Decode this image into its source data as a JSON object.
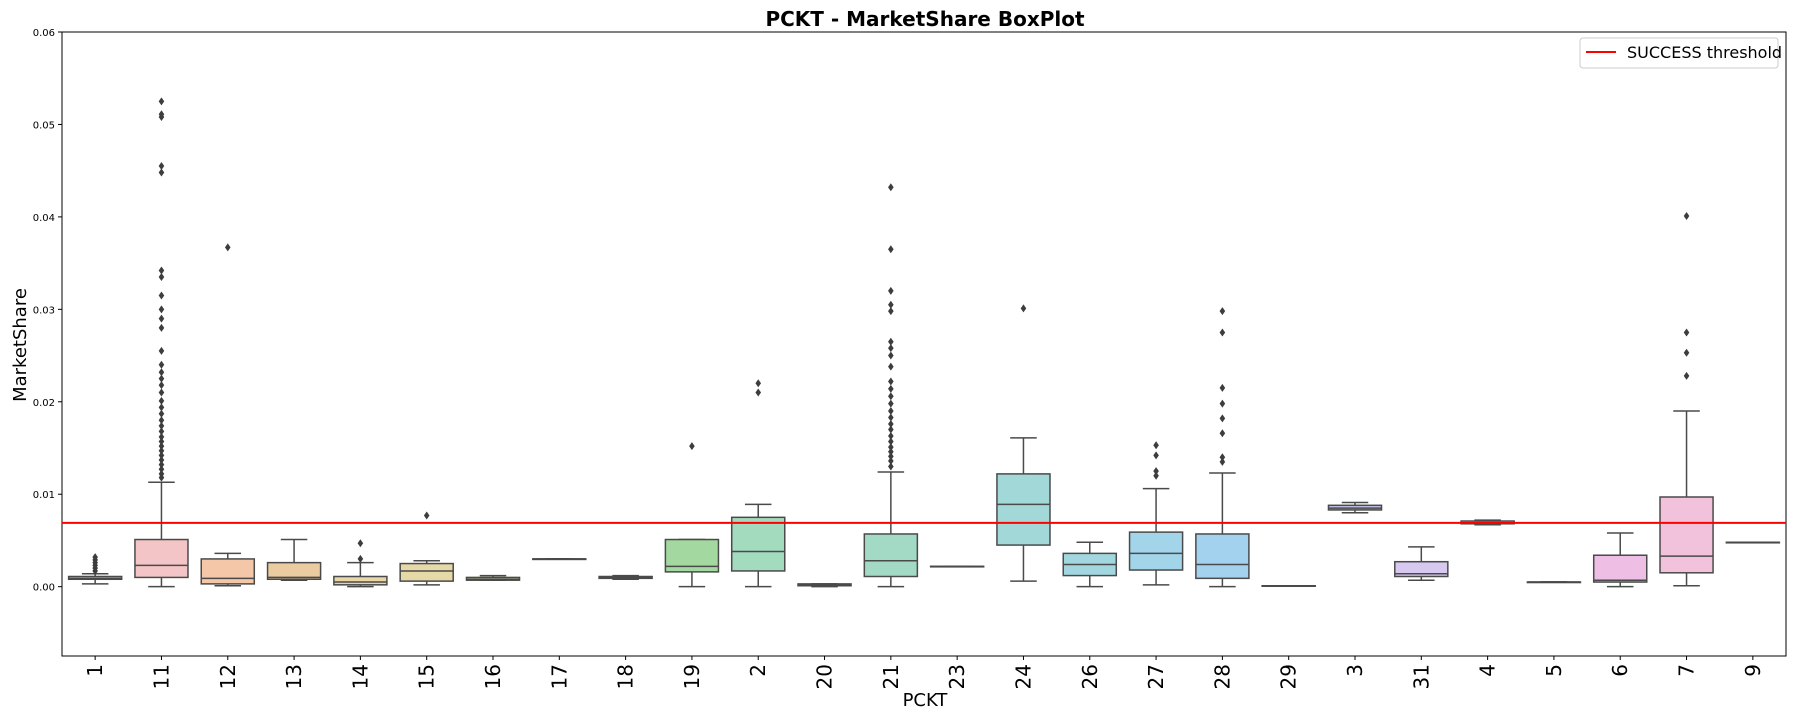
{
  "chart_data": {
    "type": "box",
    "title": "PCKT - MarketShare BoxPlot",
    "xlabel": "PCKT",
    "ylabel": "MarketShare",
    "ylim": [
      -0.0075,
      0.06
    ],
    "yticks": [
      "0.00",
      "0.01",
      "0.02",
      "0.03",
      "0.04",
      "0.05",
      "0.06"
    ],
    "threshold": {
      "name": "SUCCESS threshold",
      "value": 0.0069,
      "color": "#ff0000"
    },
    "legend_position": "top-right",
    "grid": false,
    "categories": [
      {
        "label": "1",
        "q1": 0.0008,
        "median": 0.0009,
        "q3": 0.0011,
        "wlo": 0.0003,
        "whi": 0.0014,
        "color": "#d9d9d9",
        "outliers": [
          0.0017,
          0.002,
          0.0023,
          0.0026,
          0.0029,
          0.0032
        ]
      },
      {
        "label": "11",
        "q1": 0.001,
        "median": 0.0023,
        "q3": 0.0051,
        "wlo": 0.0,
        "whi": 0.0113,
        "color": "#f4c5c6",
        "outliers": [
          0.0118,
          0.0122,
          0.0127,
          0.0132,
          0.0137,
          0.0142,
          0.0147,
          0.0152,
          0.0157,
          0.0162,
          0.0168,
          0.0174,
          0.018,
          0.0187,
          0.0194,
          0.0201,
          0.021,
          0.0218,
          0.0225,
          0.0232,
          0.024,
          0.0255,
          0.028,
          0.029,
          0.03,
          0.0315,
          0.0335,
          0.0342,
          0.0448,
          0.0455,
          0.0508,
          0.0511,
          0.0525
        ]
      },
      {
        "label": "12",
        "q1": 0.0003,
        "median": 0.0009,
        "q3": 0.003,
        "wlo": 0.0001,
        "whi": 0.0036,
        "color": "#f4c7a8",
        "outliers": [
          0.0367
        ]
      },
      {
        "label": "13",
        "q1": 0.0008,
        "median": 0.001,
        "q3": 0.0026,
        "wlo": 0.0007,
        "whi": 0.0051,
        "color": "#ebcca0",
        "outliers": []
      },
      {
        "label": "14",
        "q1": 0.0002,
        "median": 0.0005,
        "q3": 0.0011,
        "wlo": 0.0,
        "whi": 0.0026,
        "color": "#e8d5a8",
        "outliers": [
          0.003,
          0.0047
        ]
      },
      {
        "label": "15",
        "q1": 0.0006,
        "median": 0.0017,
        "q3": 0.0025,
        "wlo": 0.0002,
        "whi": 0.0028,
        "color": "#e6d9a8",
        "outliers": [
          0.0077
        ]
      },
      {
        "label": "16",
        "q1": 0.0007,
        "median": 0.0008,
        "q3": 0.001,
        "wlo": 0.0007,
        "whi": 0.0012,
        "color": "#d9dfa3",
        "outliers": []
      },
      {
        "label": "17",
        "q1": 0.003,
        "median": 0.003,
        "q3": 0.003,
        "wlo": 0.003,
        "whi": 0.003,
        "color": "#cfe0a3",
        "outliers": []
      },
      {
        "label": "18",
        "q1": 0.0009,
        "median": 0.001,
        "q3": 0.0011,
        "wlo": 0.0008,
        "whi": 0.0012,
        "color": "#c0e2a3",
        "outliers": []
      },
      {
        "label": "19",
        "q1": 0.0016,
        "median": 0.0022,
        "q3": 0.0051,
        "wlo": 0.0,
        "whi": 0.0051,
        "color": "#a3d9a0",
        "outliers": [
          0.0152
        ]
      },
      {
        "label": "2",
        "q1": 0.0017,
        "median": 0.0038,
        "q3": 0.0075,
        "wlo": 0.0,
        "whi": 0.0089,
        "color": "#a3dbbf",
        "outliers": [
          0.021,
          0.022
        ]
      },
      {
        "label": "20",
        "q1": 0.0001,
        "median": 0.0002,
        "q3": 0.0003,
        "wlo": 0.0,
        "whi": 0.0003,
        "color": "#a3dcc6",
        "outliers": []
      },
      {
        "label": "21",
        "q1": 0.0011,
        "median": 0.0028,
        "q3": 0.0057,
        "wlo": 0.0,
        "whi": 0.0124,
        "color": "#a3dac6",
        "outliers": [
          0.013,
          0.0136,
          0.0141,
          0.0146,
          0.0151,
          0.0157,
          0.0163,
          0.017,
          0.0176,
          0.0183,
          0.019,
          0.0198,
          0.0206,
          0.0214,
          0.0222,
          0.0238,
          0.025,
          0.0258,
          0.0265,
          0.0298,
          0.0305,
          0.032,
          0.0365,
          0.0432
        ]
      },
      {
        "label": "23",
        "q1": 0.0022,
        "median": 0.0022,
        "q3": 0.0022,
        "wlo": 0.0022,
        "whi": 0.0022,
        "color": "#a3dbd3",
        "outliers": []
      },
      {
        "label": "24",
        "q1": 0.0045,
        "median": 0.0089,
        "q3": 0.0122,
        "wlo": 0.0006,
        "whi": 0.0161,
        "color": "#a3d8d8",
        "outliers": [
          0.0301
        ]
      },
      {
        "label": "26",
        "q1": 0.0012,
        "median": 0.0024,
        "q3": 0.0036,
        "wlo": 0.0,
        "whi": 0.0048,
        "color": "#a3d7e0",
        "outliers": []
      },
      {
        "label": "27",
        "q1": 0.0018,
        "median": 0.0036,
        "q3": 0.0059,
        "wlo": 0.0002,
        "whi": 0.0106,
        "color": "#a3d5ea",
        "outliers": [
          0.012,
          0.0125,
          0.0142,
          0.0153
        ]
      },
      {
        "label": "28",
        "q1": 0.0009,
        "median": 0.0024,
        "q3": 0.0057,
        "wlo": 0.0,
        "whi": 0.0123,
        "color": "#a3d2ef",
        "outliers": [
          0.0135,
          0.014,
          0.0166,
          0.0182,
          0.0198,
          0.0215,
          0.0275,
          0.0298
        ]
      },
      {
        "label": "29",
        "q1": 0.0001,
        "median": 0.0001,
        "q3": 0.0001,
        "wlo": 0.0001,
        "whi": 0.0001,
        "color": "#b8cce8",
        "outliers": []
      },
      {
        "label": "3",
        "q1": 0.0083,
        "median": 0.0085,
        "q3": 0.0088,
        "wlo": 0.008,
        "whi": 0.0091,
        "color": "#c2c3e8",
        "outliers": []
      },
      {
        "label": "31",
        "q1": 0.0011,
        "median": 0.0014,
        "q3": 0.0027,
        "wlo": 0.0007,
        "whi": 0.0043,
        "color": "#d7c8f0",
        "outliers": []
      },
      {
        "label": "4",
        "q1": 0.0068,
        "median": 0.0069,
        "q3": 0.0071,
        "wlo": 0.0067,
        "whi": 0.0072,
        "color": "#ddc5ee",
        "outliers": []
      },
      {
        "label": "5",
        "q1": 0.0005,
        "median": 0.0005,
        "q3": 0.0005,
        "wlo": 0.0005,
        "whi": 0.0005,
        "color": "#e6c2ec",
        "outliers": []
      },
      {
        "label": "6",
        "q1": 0.0005,
        "median": 0.0007,
        "q3": 0.0034,
        "wlo": 0.0,
        "whi": 0.0058,
        "color": "#efbee4",
        "outliers": []
      },
      {
        "label": "7",
        "q1": 0.0015,
        "median": 0.0033,
        "q3": 0.0097,
        "wlo": 0.0001,
        "whi": 0.019,
        "color": "#f2c1dc",
        "outliers": [
          0.0228,
          0.0253,
          0.0275,
          0.0401
        ]
      },
      {
        "label": "9",
        "q1": 0.0048,
        "median": 0.0048,
        "q3": 0.0048,
        "wlo": 0.0048,
        "whi": 0.0048,
        "color": "#f2c4d4",
        "outliers": []
      }
    ]
  }
}
